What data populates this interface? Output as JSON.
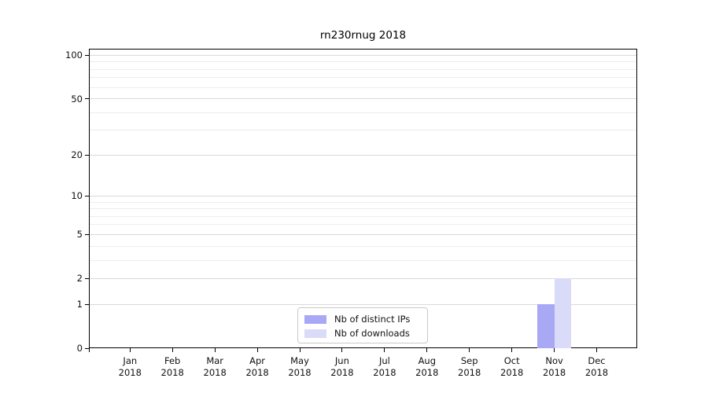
{
  "figure": {
    "title": "rn230rnug 2018",
    "background": "#ffffff"
  },
  "chart_data": {
    "type": "bar",
    "title": "rn230rnug 2018",
    "categories": [
      "Jan",
      "Feb",
      "Mar",
      "Apr",
      "May",
      "Jun",
      "Jul",
      "Aug",
      "Sep",
      "Oct",
      "Nov",
      "Dec"
    ],
    "year_label": "2018",
    "series": [
      {
        "name": "Nb of distinct IPs",
        "color": "#a8a8f5",
        "values": [
          0,
          0,
          0,
          0,
          0,
          0,
          0,
          0,
          0,
          0,
          1,
          0
        ]
      },
      {
        "name": "Nb of downloads",
        "color": "#dadaf9",
        "values": [
          0,
          0,
          0,
          0,
          0,
          0,
          0,
          0,
          0,
          0,
          2,
          0
        ]
      }
    ],
    "xlabel": "",
    "ylabel": "",
    "y_scale": "log10(1+x)",
    "y_major_ticks": [
      0,
      1,
      2,
      5,
      10,
      20,
      50,
      100
    ],
    "y_minor_ticks": [
      3,
      4,
      6,
      7,
      8,
      9,
      30,
      40,
      60,
      70,
      80,
      90
    ],
    "ylim": [
      0,
      110
    ],
    "grid": true,
    "legend_position": "inside-bottom-center",
    "colors": {
      "axis": "#000000",
      "major_grid": "#d9d9d9",
      "minor_grid": "#ededed",
      "legend_border": "#c9c9c9"
    }
  }
}
